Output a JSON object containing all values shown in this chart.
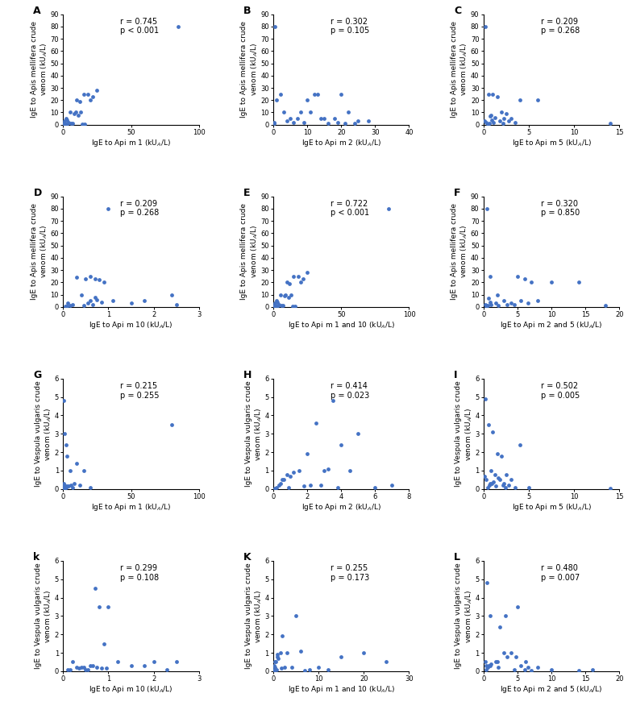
{
  "panels": [
    {
      "label": "A",
      "r": "0.745",
      "p": "< 0.001",
      "xlabel": "IgE to Api m 1 (kUA/L)",
      "ylabel": "IgE to Apis mellifera crude\nvenom (kUA/L)",
      "xlim": [
        0,
        100
      ],
      "ylim": [
        0,
        90
      ],
      "xticks": [
        0,
        50,
        100
      ],
      "yticks": [
        0,
        10,
        20,
        30,
        40,
        50,
        60,
        70,
        80,
        90
      ],
      "x": [
        5,
        8,
        10,
        12,
        15,
        18,
        20,
        22,
        25,
        2,
        3,
        1,
        4,
        6,
        7,
        9,
        11,
        13,
        85,
        1,
        2,
        0.5,
        3,
        14,
        16,
        0.2,
        1.5
      ],
      "y": [
        10,
        9,
        20,
        19,
        25,
        25,
        20,
        23,
        28,
        5,
        4,
        3,
        2,
        1,
        1,
        10,
        8,
        10,
        80,
        0.5,
        0.3,
        1,
        0.5,
        0.2,
        0.3,
        0.1,
        0.2
      ]
    },
    {
      "label": "B",
      "r": "0.302",
      "p": "0.105",
      "xlabel": "IgE to Api m 2 (kUA/L)",
      "ylabel": "IgE to Apis mellifera crude\nvenom (kUA/L)",
      "xlim": [
        0,
        40
      ],
      "ylim": [
        0,
        90
      ],
      "xticks": [
        0,
        10,
        20,
        30,
        40
      ],
      "yticks": [
        0,
        10,
        20,
        30,
        40,
        50,
        60,
        70,
        80,
        90
      ],
      "x": [
        0.5,
        1,
        2,
        3,
        5,
        8,
        10,
        12,
        13,
        15,
        18,
        20,
        22,
        25,
        28,
        0.2,
        0.3,
        4,
        6,
        7,
        9,
        11,
        14,
        16,
        19,
        21,
        24
      ],
      "y": [
        80,
        20,
        25,
        10,
        5,
        10,
        20,
        25,
        25,
        5,
        5,
        25,
        10,
        3,
        3,
        2,
        1,
        3,
        2,
        5,
        2,
        10,
        5,
        1,
        2,
        1,
        1
      ]
    },
    {
      "label": "C",
      "r": "0.209",
      "p": "0.268",
      "xlabel": "IgE to Api m 5 (kUA/L)",
      "ylabel": "IgE to Apis mellifera crude\nvenom (kUA/L)",
      "xlim": [
        0,
        15
      ],
      "ylim": [
        0,
        90
      ],
      "xticks": [
        0,
        5,
        10,
        15
      ],
      "yticks": [
        0,
        10,
        20,
        30,
        40,
        50,
        60,
        70,
        80,
        90
      ],
      "x": [
        0.2,
        0.5,
        1,
        1.5,
        2,
        2.5,
        3,
        4,
        6,
        14,
        0.1,
        0.3,
        0.8,
        1.2,
        2.2,
        2.8,
        3.5,
        0.4,
        0.6,
        0.9,
        1.8,
        2.1,
        0.7,
        1.1
      ],
      "y": [
        80,
        25,
        25,
        23,
        10,
        9,
        5,
        20,
        20,
        1,
        3,
        2,
        8,
        6,
        5,
        3,
        2,
        0.5,
        1,
        4,
        3,
        1,
        7,
        2
      ]
    },
    {
      "label": "D",
      "r": "0.209",
      "p": "0.268",
      "xlabel": "IgE to Api m 10 (kUA/L)",
      "ylabel": "IgE to Apis mellifera crude\nvenom (kUA/L)",
      "xlim": [
        0,
        3
      ],
      "ylim": [
        0,
        90
      ],
      "xticks": [
        0,
        1,
        2,
        3
      ],
      "yticks": [
        0,
        10,
        20,
        30,
        40,
        50,
        60,
        70,
        80,
        90
      ],
      "x": [
        0.5,
        0.6,
        0.7,
        0.8,
        0.9,
        1.0,
        0.3,
        0.4,
        1.8,
        2.4,
        0.1,
        0.2,
        0.15,
        0.05,
        0.08,
        0.6,
        0.7,
        0.75,
        0.85,
        0.55,
        0.65,
        1.1,
        0.45,
        1.5,
        2.5
      ],
      "y": [
        23,
        25,
        23,
        22,
        20,
        80,
        24,
        10,
        5,
        10,
        3,
        2,
        1,
        0.5,
        0.5,
        5,
        8,
        6,
        4,
        3,
        2,
        5,
        1,
        3,
        2
      ]
    },
    {
      "label": "E",
      "r": "0.722",
      "p": "< 0.001",
      "xlabel": "IgE to Api m 1 and 10 (kUA/L)",
      "ylabel": "IgE to Apis mellifera crude\nvenom (kUA/L)",
      "xlim": [
        0,
        100
      ],
      "ylim": [
        0,
        90
      ],
      "xticks": [
        0,
        50,
        100
      ],
      "yticks": [
        0,
        10,
        20,
        30,
        40,
        50,
        60,
        70,
        80,
        90
      ],
      "x": [
        5,
        8,
        10,
        12,
        15,
        18,
        20,
        22,
        25,
        2,
        3,
        1,
        4,
        6,
        7,
        9,
        11,
        13,
        85,
        1,
        2,
        0.5,
        3,
        14,
        16,
        0.2,
        1.5
      ],
      "y": [
        10,
        9,
        20,
        19,
        25,
        25,
        20,
        23,
        28,
        5,
        4,
        3,
        2,
        1,
        1,
        10,
        8,
        10,
        80,
        0.5,
        0.3,
        1,
        0.5,
        0.2,
        0.3,
        0.1,
        0.2
      ]
    },
    {
      "label": "F",
      "r": "0.320",
      "p": "0.850",
      "xlabel": "IgE to Api m 2 and 5 (kUA/L)",
      "ylabel": "IgE to Apis mellifera crude\nvenom (kUA/L)",
      "xlim": [
        0,
        20
      ],
      "ylim": [
        0,
        90
      ],
      "xticks": [
        0,
        5,
        10,
        15,
        20
      ],
      "yticks": [
        0,
        10,
        20,
        30,
        40,
        50,
        60,
        70,
        80,
        90
      ],
      "x": [
        0.5,
        1,
        2,
        3,
        5,
        6,
        7,
        8,
        10,
        14,
        0.2,
        0.3,
        4,
        3.5,
        5.5,
        6.5,
        4.5,
        0.4,
        0.6,
        0.9,
        1.8,
        2.1,
        0.7,
        1.1,
        18
      ],
      "y": [
        80,
        25,
        10,
        5,
        25,
        23,
        20,
        5,
        20,
        20,
        2,
        1,
        3,
        2,
        5,
        3,
        2,
        0.5,
        1,
        4,
        3,
        1,
        7,
        2,
        1
      ]
    },
    {
      "label": "G",
      "r": "0.215",
      "p": "0.255",
      "xlabel": "IgE to Api m 1 (kUA/L)",
      "ylabel": "IgE to Vespula vulgaris crude\nvenom (kUA/L)",
      "xlim": [
        0,
        100
      ],
      "ylim": [
        0,
        6
      ],
      "xticks": [
        0,
        50,
        100
      ],
      "yticks": [
        0,
        1,
        2,
        3,
        4,
        5,
        6
      ],
      "x": [
        0.5,
        1,
        2,
        3,
        5,
        8,
        10,
        15,
        80,
        0.2,
        0.3,
        0.4,
        1.5,
        2.5,
        4,
        6,
        12,
        7,
        0.1,
        0.15,
        0.05,
        0.6,
        0.8,
        1.2,
        2.2,
        20
      ],
      "y": [
        4.8,
        3.0,
        2.4,
        1.8,
        1.0,
        0.3,
        1.4,
        1.0,
        3.5,
        0.2,
        0.1,
        0.2,
        0.1,
        0.15,
        0.15,
        0.2,
        0.2,
        0.1,
        0.05,
        0.1,
        0.05,
        0.3,
        0.2,
        0.1,
        0.1,
        0.1
      ]
    },
    {
      "label": "H",
      "r": "0.414",
      "p": "0.023",
      "xlabel": "IgE to Api m 2 (kUA/L)",
      "ylabel": "IgE to Vespula vulgaris crude\nvenom (kUA/L)",
      "xlim": [
        0,
        8
      ],
      "ylim": [
        0,
        6
      ],
      "xticks": [
        0,
        2,
        4,
        6,
        8
      ],
      "yticks": [
        0,
        1,
        2,
        3,
        4,
        5,
        6
      ],
      "x": [
        0.5,
        1,
        2,
        2.5,
        3,
        3.5,
        4,
        4.5,
        5,
        6,
        7,
        0.2,
        0.3,
        0.8,
        1.5,
        2.2,
        2.8,
        3.2,
        3.8,
        0.1,
        0.4,
        0.6,
        0.9,
        1.2,
        1.8
      ],
      "y": [
        0.5,
        0.7,
        1.9,
        3.6,
        1.0,
        4.8,
        2.4,
        1.0,
        3.0,
        0.1,
        0.2,
        0.1,
        0.2,
        0.8,
        1.0,
        0.2,
        0.2,
        1.1,
        0.1,
        0.05,
        0.3,
        0.5,
        0.1,
        0.9,
        0.15
      ]
    },
    {
      "label": "I",
      "r": "0.502",
      "p": "0.005",
      "xlabel": "IgE to Api m 5 (kUA/L)",
      "ylabel": "IgE to Vespula vulgaris crude\nvenom (kUA/L)",
      "xlim": [
        0,
        15
      ],
      "ylim": [
        0,
        6
      ],
      "xticks": [
        0,
        5,
        10,
        15
      ],
      "yticks": [
        0,
        1,
        2,
        3,
        4,
        5,
        6
      ],
      "x": [
        0.2,
        0.5,
        1,
        1.5,
        2,
        2.5,
        3,
        4,
        5,
        14,
        0.1,
        0.3,
        0.8,
        1.2,
        2.2,
        2.8,
        3.5,
        0.4,
        0.6,
        0.9,
        1.8,
        2.1,
        0.7,
        1.1,
        1.3,
        1.6,
        2.4
      ],
      "y": [
        4.9,
        3.5,
        3.1,
        1.9,
        1.8,
        0.8,
        0.5,
        2.4,
        0.1,
        0.05,
        0.7,
        0.5,
        1.0,
        0.8,
        0.3,
        0.2,
        0.1,
        0.1,
        0.2,
        0.3,
        0.5,
        0.2,
        0.3,
        0.4,
        0.15,
        0.6,
        0.1
      ]
    },
    {
      "label": "k",
      "r": "0.299",
      "p": "0.108",
      "xlabel": "IgE to Api m 10 (kUA/L)",
      "ylabel": "IgE to Vespula vulgaris crude\nvenom (kUA/L)",
      "xlim": [
        0,
        3
      ],
      "ylim": [
        0,
        6
      ],
      "xticks": [
        0,
        1,
        2,
        3
      ],
      "yticks": [
        0,
        1,
        2,
        3,
        4,
        5,
        6
      ],
      "x": [
        0.2,
        0.4,
        0.5,
        0.6,
        0.7,
        0.8,
        0.9,
        1.0,
        1.5,
        2.0,
        2.5,
        0.1,
        0.15,
        0.3,
        0.35,
        0.45,
        0.55,
        0.65,
        0.75,
        0.85,
        0.95,
        1.2,
        1.8,
        2.3
      ],
      "y": [
        0.5,
        0.2,
        0.1,
        0.3,
        4.5,
        3.5,
        1.5,
        3.5,
        0.3,
        0.5,
        0.5,
        0.1,
        0.1,
        0.2,
        0.15,
        0.2,
        0.1,
        0.3,
        0.2,
        0.15,
        0.15,
        0.5,
        0.3,
        0.1
      ]
    },
    {
      "label": "K",
      "r": "0.255",
      "p": "0.173",
      "xlabel": "IgE to Api m 1 and 10 (kUA/L)",
      "ylabel": "IgE to Vespula vulgaris crude\nvenom (kUA/L)",
      "xlim": [
        0,
        30
      ],
      "ylim": [
        0,
        6
      ],
      "xticks": [
        0,
        10,
        20,
        30
      ],
      "yticks": [
        0,
        1,
        2,
        3,
        4,
        5,
        6
      ],
      "x": [
        0.5,
        1,
        2,
        3,
        5,
        8,
        10,
        15,
        20,
        25,
        0.2,
        0.3,
        0.8,
        1.5,
        2.5,
        4,
        6,
        12,
        7,
        0.1,
        0.15,
        0.4,
        0.6,
        0.9,
        1.8
      ],
      "y": [
        0.5,
        0.7,
        1.9,
        1.0,
        3.0,
        0.1,
        0.2,
        0.8,
        1.0,
        0.5,
        0.1,
        0.2,
        0.8,
        1.0,
        0.2,
        0.2,
        1.1,
        0.1,
        0.05,
        0.05,
        0.3,
        0.5,
        0.1,
        0.9,
        0.15
      ]
    },
    {
      "label": "L",
      "r": "0.480",
      "p": "0.007",
      "xlabel": "IgE to Api m 2 and 5 (kUA/L)",
      "ylabel": "IgE to Vespula vulgaris crude\nvenom (kUA/L)",
      "xlim": [
        0,
        20
      ],
      "ylim": [
        0,
        6
      ],
      "xticks": [
        0,
        5,
        10,
        15,
        20
      ],
      "yticks": [
        0,
        1,
        2,
        3,
        4,
        5,
        6
      ],
      "x": [
        0.5,
        1,
        2,
        3,
        5,
        6,
        7,
        8,
        10,
        14,
        0.2,
        0.3,
        4,
        3.5,
        5.5,
        6.5,
        4.5,
        0.4,
        0.6,
        0.9,
        1.8,
        2.1,
        0.7,
        1.1,
        16,
        2.4,
        3.2,
        4.8,
        6.2
      ],
      "y": [
        4.8,
        3.0,
        0.5,
        1.0,
        3.5,
        0.1,
        0.05,
        0.2,
        0.1,
        0.05,
        0.5,
        0.3,
        1.0,
        0.8,
        0.3,
        0.2,
        0.1,
        0.1,
        0.2,
        0.3,
        0.5,
        0.2,
        0.3,
        0.4,
        0.1,
        2.4,
        3.0,
        0.8,
        0.5
      ]
    }
  ],
  "dot_color": "#4472C4",
  "dot_size": 12,
  "font_size_label": 6.5,
  "font_size_tick": 6.0,
  "font_size_annot": 7.0,
  "font_size_panel_label": 9
}
